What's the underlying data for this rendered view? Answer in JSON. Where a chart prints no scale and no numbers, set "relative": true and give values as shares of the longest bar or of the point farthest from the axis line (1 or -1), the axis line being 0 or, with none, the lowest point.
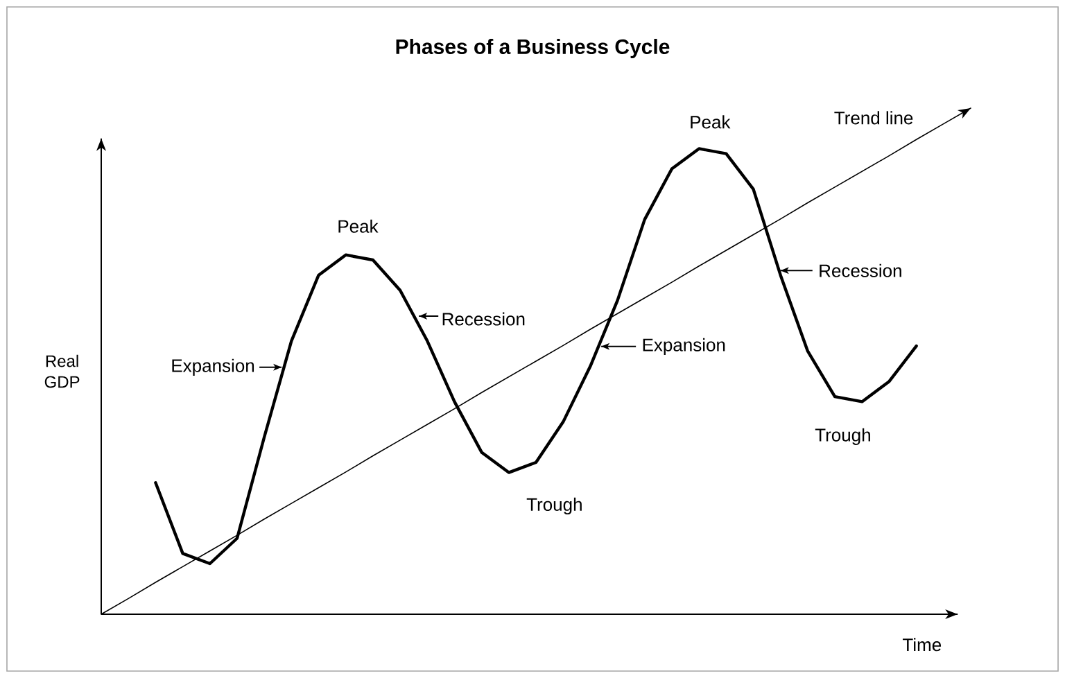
{
  "chart_data": {
    "type": "line",
    "title": "Phases of a Business Cycle",
    "xlabel": "Time",
    "ylabel": "Real GDP",
    "relative": true,
    "marker": "none",
    "line_style": "solid",
    "categories": [
      null,
      null,
      null,
      null,
      null,
      null,
      null,
      null,
      null,
      null,
      null,
      null,
      null,
      null,
      null,
      null,
      null,
      null,
      null,
      null,
      null,
      null,
      null,
      null,
      null,
      null,
      null,
      null,
      null,
      null,
      null,
      null,
      null
    ],
    "series": [
      {
        "color": "#000000",
        "values": [
          null,
          null,
          0.26,
          0.12,
          0.1,
          0.15,
          0.35,
          0.54,
          0.67,
          0.71,
          0.7,
          0.64,
          0.54,
          0.42,
          0.32,
          0.28,
          0.3,
          0.38,
          0.49,
          0.62,
          0.78,
          0.88,
          0.92,
          0.91,
          0.84,
          0.67,
          0.52,
          0.43,
          0.42,
          0.46,
          0.53,
          null,
          null
        ]
      },
      {
        "color": "#000000",
        "values": [
          0,
          0.031,
          0.063,
          0.094,
          0.125,
          0.156,
          0.188,
          0.219,
          0.25,
          0.281,
          0.313,
          0.344,
          0.375,
          0.406,
          0.438,
          0.469,
          0.5,
          0.531,
          0.563,
          0.594,
          0.625,
          0.656,
          0.688,
          0.719,
          0.75,
          0.781,
          0.813,
          0.844,
          0.875,
          0.906,
          0.938,
          0.969,
          1
        ]
      }
    ],
    "annotations": [
      "Peak",
      "Trough",
      "Peak",
      "Trough",
      "Expansion",
      "Recession",
      "Expansion",
      "Recession",
      "Trend line"
    ]
  }
}
